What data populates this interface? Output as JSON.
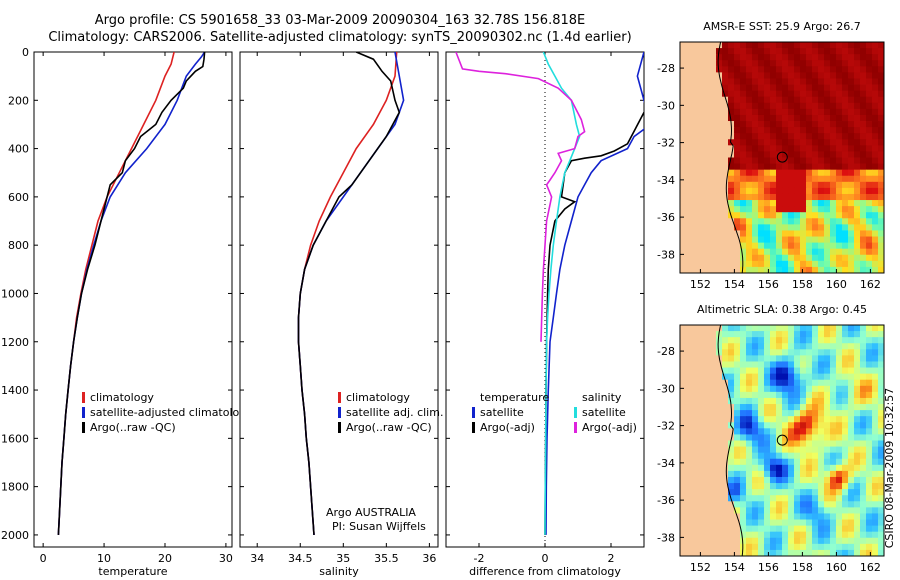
{
  "header": {
    "title_line1": "Argo profile: CS 5901658_33 03-Mar-2009 20090304_163 32.78S 156.818E",
    "title_line2": "Climatology: CARS2006. Satellite-adjusted climatology: synTS_20090302.nc (1.4d earlier)"
  },
  "side_label": "CSIRO 08-Mar-2009 10:32:57",
  "colors": {
    "climatology": "#dd2222",
    "satellite": "#1122cc",
    "argo": "#000000",
    "temp_diff_satellite": "#1122cc",
    "salinity_diff_satellite": "#22dddd",
    "salinity_diff_argo": "#dd22dd",
    "land": "#f8c89c"
  },
  "chart_data": [
    {
      "id": "temperature",
      "type": "line",
      "xlabel": "temperature",
      "ylabel": "",
      "xlim": [
        -1.5,
        31
      ],
      "ylim": [
        2050,
        0
      ],
      "x_ticks": [
        "0",
        "10",
        "20",
        "30"
      ],
      "y_ticks": [
        "0",
        "200",
        "400",
        "600",
        "800",
        "1000",
        "1200",
        "1400",
        "1600",
        "1800",
        "2000"
      ],
      "legend": [
        "climatology",
        "satellite-adjusted climatology",
        "Argo(..raw -QC)"
      ],
      "legend_position": "bottom-right",
      "series": [
        {
          "name": "climatology",
          "color_key": "climatology",
          "points": [
            [
              21.5,
              0
            ],
            [
              21,
              50
            ],
            [
              20,
              100
            ],
            [
              18.5,
              200
            ],
            [
              16.5,
              300
            ],
            [
              14.5,
              400
            ],
            [
              12.5,
              500
            ],
            [
              10.5,
              600
            ],
            [
              9,
              700
            ],
            [
              8,
              800
            ],
            [
              7,
              900
            ],
            [
              6.2,
              1000
            ],
            [
              5.5,
              1100
            ],
            [
              5,
              1200
            ],
            [
              4.5,
              1300
            ],
            [
              4.1,
              1400
            ],
            [
              3.7,
              1500
            ],
            [
              3.4,
              1600
            ],
            [
              3.1,
              1700
            ],
            [
              2.9,
              1800
            ],
            [
              2.7,
              1900
            ],
            [
              2.5,
              2000
            ]
          ]
        },
        {
          "name": "satellite-adjusted climatology",
          "color_key": "satellite",
          "points": [
            [
              26.5,
              0
            ],
            [
              26,
              20
            ],
            [
              25,
              50
            ],
            [
              23.5,
              100
            ],
            [
              22,
              200
            ],
            [
              20,
              300
            ],
            [
              17,
              400
            ],
            [
              13.5,
              500
            ],
            [
              11,
              600
            ],
            [
              9.5,
              700
            ],
            [
              8.3,
              800
            ],
            [
              7.2,
              900
            ],
            [
              6.3,
              1000
            ],
            [
              5.6,
              1100
            ],
            [
              5,
              1200
            ],
            [
              4.5,
              1300
            ],
            [
              4.1,
              1400
            ],
            [
              3.7,
              1500
            ],
            [
              3.4,
              1600
            ],
            [
              3.1,
              1700
            ],
            [
              2.9,
              1800
            ],
            [
              2.7,
              1900
            ],
            [
              2.5,
              2000
            ]
          ]
        },
        {
          "name": "Argo(..raw -QC)",
          "color_key": "argo",
          "points": [
            [
              26.5,
              0
            ],
            [
              26.4,
              30
            ],
            [
              26.2,
              60
            ],
            [
              25,
              80
            ],
            [
              23.5,
              120
            ],
            [
              23,
              150
            ],
            [
              21,
              200
            ],
            [
              19.5,
              250
            ],
            [
              18.5,
              300
            ],
            [
              16,
              350
            ],
            [
              15,
              400
            ],
            [
              13.5,
              450
            ],
            [
              13,
              500
            ],
            [
              11,
              550
            ],
            [
              10.5,
              600
            ],
            [
              9.5,
              700
            ],
            [
              8.5,
              800
            ],
            [
              7.3,
              900
            ],
            [
              6.3,
              1000
            ],
            [
              5.6,
              1100
            ],
            [
              5,
              1200
            ],
            [
              4.5,
              1300
            ],
            [
              4.1,
              1400
            ],
            [
              3.7,
              1500
            ],
            [
              3.4,
              1600
            ],
            [
              3.1,
              1700
            ],
            [
              2.9,
              1800
            ],
            [
              2.7,
              1900
            ],
            [
              2.5,
              2000
            ]
          ]
        }
      ]
    },
    {
      "id": "salinity",
      "type": "line",
      "xlabel": "salinity",
      "ylabel": "",
      "xlim": [
        33.8,
        36.1
      ],
      "ylim": [
        2050,
        0
      ],
      "x_ticks": [
        "34",
        "34.5",
        "35",
        "35.5",
        "36"
      ],
      "y_ticks": [],
      "legend": [
        "climatology",
        "satellite adj. clim.",
        "Argo(..raw -QC)"
      ],
      "legend_position": "bottom-right",
      "annotations": [
        "Argo AUSTRALIA",
        "PI: Susan Wijffels"
      ],
      "series": [
        {
          "name": "climatology",
          "color_key": "climatology",
          "points": [
            [
              35.62,
              0
            ],
            [
              35.6,
              100
            ],
            [
              35.5,
              200
            ],
            [
              35.35,
              300
            ],
            [
              35.15,
              400
            ],
            [
              35,
              500
            ],
            [
              34.85,
              600
            ],
            [
              34.72,
              700
            ],
            [
              34.62,
              800
            ],
            [
              34.55,
              900
            ],
            [
              34.5,
              1000
            ],
            [
              34.48,
              1100
            ],
            [
              34.48,
              1200
            ],
            [
              34.5,
              1300
            ],
            [
              34.52,
              1400
            ],
            [
              34.55,
              1500
            ],
            [
              34.57,
              1600
            ],
            [
              34.6,
              1700
            ],
            [
              34.62,
              1800
            ],
            [
              34.64,
              1900
            ],
            [
              34.66,
              2000
            ]
          ]
        },
        {
          "name": "satellite adj. clim.",
          "color_key": "satellite",
          "points": [
            [
              35.6,
              0
            ],
            [
              35.65,
              100
            ],
            [
              35.7,
              200
            ],
            [
              35.6,
              300
            ],
            [
              35.4,
              400
            ],
            [
              35.2,
              500
            ],
            [
              35,
              600
            ],
            [
              34.8,
              700
            ],
            [
              34.65,
              800
            ],
            [
              34.55,
              900
            ],
            [
              34.5,
              1000
            ],
            [
              34.48,
              1100
            ],
            [
              34.48,
              1200
            ],
            [
              34.5,
              1300
            ],
            [
              34.52,
              1400
            ],
            [
              34.55,
              1500
            ],
            [
              34.57,
              1600
            ],
            [
              34.6,
              1700
            ],
            [
              34.62,
              1800
            ],
            [
              34.64,
              1900
            ],
            [
              34.66,
              2000
            ]
          ]
        },
        {
          "name": "Argo(..raw -QC)",
          "color_key": "argo",
          "points": [
            [
              35.15,
              0
            ],
            [
              35.35,
              30
            ],
            [
              35.45,
              80
            ],
            [
              35.55,
              120
            ],
            [
              35.6,
              200
            ],
            [
              35.65,
              250
            ],
            [
              35.5,
              350
            ],
            [
              35.3,
              450
            ],
            [
              35.1,
              550
            ],
            [
              34.95,
              600
            ],
            [
              34.8,
              700
            ],
            [
              34.65,
              800
            ],
            [
              34.55,
              900
            ],
            [
              34.5,
              1000
            ],
            [
              34.48,
              1100
            ],
            [
              34.48,
              1200
            ],
            [
              34.5,
              1300
            ],
            [
              34.52,
              1400
            ],
            [
              34.55,
              1500
            ],
            [
              34.57,
              1600
            ],
            [
              34.6,
              1700
            ],
            [
              34.62,
              1800
            ],
            [
              34.64,
              1900
            ],
            [
              34.66,
              2000
            ]
          ]
        }
      ]
    },
    {
      "id": "difference",
      "type": "line",
      "xlabel": "difference from climatology",
      "ylabel": "",
      "xlim": [
        -3,
        3
      ],
      "ylim": [
        2050,
        0
      ],
      "x_ticks": [
        "-2",
        "0",
        "2"
      ],
      "y_ticks": [],
      "zero_line": "dotted",
      "legend_left_title": "temperature",
      "legend_left": [
        "satellite",
        "Argo(-adj)"
      ],
      "legend_right_title": "salinity",
      "legend_right": [
        "satellite",
        "Argo(-adj)"
      ],
      "series": [
        {
          "name": "temperature satellite",
          "color_key": "temp_diff_satellite",
          "points": [
            [
              3,
              0
            ],
            [
              2.8,
              100
            ],
            [
              3,
              200
            ],
            [
              3.2,
              300
            ],
            [
              2.7,
              350
            ],
            [
              2.5,
              400
            ],
            [
              1.7,
              450
            ],
            [
              1.4,
              500
            ],
            [
              1.2,
              550
            ],
            [
              1,
              600
            ],
            [
              0.8,
              700
            ],
            [
              0.6,
              800
            ],
            [
              0.45,
              900
            ],
            [
              0.35,
              1000
            ],
            [
              0.25,
              1100
            ],
            [
              0.15,
              1200
            ],
            [
              0.1,
              1400
            ],
            [
              0.06,
              1600
            ],
            [
              0.04,
              1800
            ],
            [
              0.03,
              2000
            ]
          ]
        },
        {
          "name": "temperature Argo(-adj)",
          "color_key": "argo",
          "points": [
            [
              3,
              250
            ],
            [
              2.5,
              380
            ],
            [
              2.1,
              410
            ],
            [
              1.7,
              430
            ],
            [
              1.2,
              440
            ],
            [
              0.8,
              450
            ],
            [
              0.6,
              500
            ],
            [
              0.5,
              600
            ],
            [
              0.9,
              620
            ],
            [
              0.6,
              650
            ],
            [
              0.3,
              700
            ],
            [
              0.15,
              800
            ],
            [
              0.1,
              900
            ],
            [
              0.08,
              1000
            ],
            [
              0.05,
              1200
            ],
            [
              0.03,
              1400
            ],
            [
              0.02,
              1600
            ],
            [
              0.01,
              1800
            ],
            [
              0,
              2000
            ]
          ]
        },
        {
          "name": "salinity satellite",
          "color_key": "salinity_diff_satellite",
          "points": [
            [
              -0.05,
              0
            ],
            [
              0.1,
              50
            ],
            [
              0.3,
              100
            ],
            [
              0.5,
              150
            ],
            [
              0.8,
              200
            ],
            [
              0.95,
              300
            ],
            [
              1.05,
              350
            ],
            [
              0.9,
              400
            ],
            [
              0.75,
              450
            ],
            [
              0.6,
              500
            ],
            [
              0.45,
              600
            ],
            [
              0.35,
              700
            ],
            [
              0.25,
              800
            ],
            [
              0.18,
              900
            ],
            [
              0.12,
              1000
            ],
            [
              0.08,
              1100
            ],
            [
              0.05,
              1200
            ],
            [
              0.03,
              1400
            ],
            [
              0.02,
              1600
            ],
            [
              0.01,
              1800
            ],
            [
              0,
              2000
            ]
          ]
        },
        {
          "name": "salinity Argo(-adj)",
          "color_key": "salinity_diff_argo",
          "points": [
            [
              -2.7,
              0
            ],
            [
              -2.5,
              70
            ],
            [
              -2,
              80
            ],
            [
              -1.2,
              90
            ],
            [
              -0.2,
              110
            ],
            [
              0.4,
              150
            ],
            [
              0.8,
              200
            ],
            [
              1.1,
              280
            ],
            [
              1.2,
              330
            ],
            [
              1,
              350
            ],
            [
              0.9,
              400
            ],
            [
              0.4,
              420
            ],
            [
              0.5,
              450
            ],
            [
              0.3,
              500
            ],
            [
              0.15,
              530
            ],
            [
              0.05,
              550
            ],
            [
              0.2,
              600
            ],
            [
              0.05,
              700
            ],
            [
              0,
              800
            ],
            [
              -0.05,
              900
            ],
            [
              -0.08,
              1000
            ],
            [
              -0.1,
              1100
            ],
            [
              -0.12,
              1200
            ]
          ]
        }
      ]
    },
    {
      "id": "sst-map",
      "type": "heatmap",
      "title": "AMSR-E SST: 25.9 Argo: 26.7",
      "x_ticks": [
        "152",
        "154",
        "156",
        "158",
        "160",
        "162"
      ],
      "y_ticks": [
        "-28",
        "-30",
        "-32",
        "-34",
        "-36",
        "-38"
      ],
      "xlim": [
        150.8,
        162.8
      ],
      "ylim": [
        -39,
        -26.6
      ],
      "marker": {
        "lon": 156.818,
        "lat": -32.78
      },
      "colormap": [
        "#00e0ff",
        "#80ffa0",
        "#ffe020",
        "#ff8020",
        "#dd1010",
        "#900000"
      ]
    },
    {
      "id": "sla-map",
      "type": "heatmap",
      "title": "Altimetric SLA: 0.38 Argo: 0.45",
      "x_ticks": [
        "152",
        "154",
        "156",
        "158",
        "160",
        "162"
      ],
      "y_ticks": [
        "-28",
        "-30",
        "-32",
        "-34",
        "-36",
        "-38"
      ],
      "xlim": [
        150.8,
        162.8
      ],
      "ylim": [
        -39,
        -26.6
      ],
      "marker": {
        "lon": 156.818,
        "lat": -32.78
      },
      "colormap": [
        "#0010b0",
        "#2070ff",
        "#30c0ff",
        "#90ffd0",
        "#f0ff60",
        "#ffb020",
        "#e82010",
        "#800000"
      ]
    }
  ]
}
